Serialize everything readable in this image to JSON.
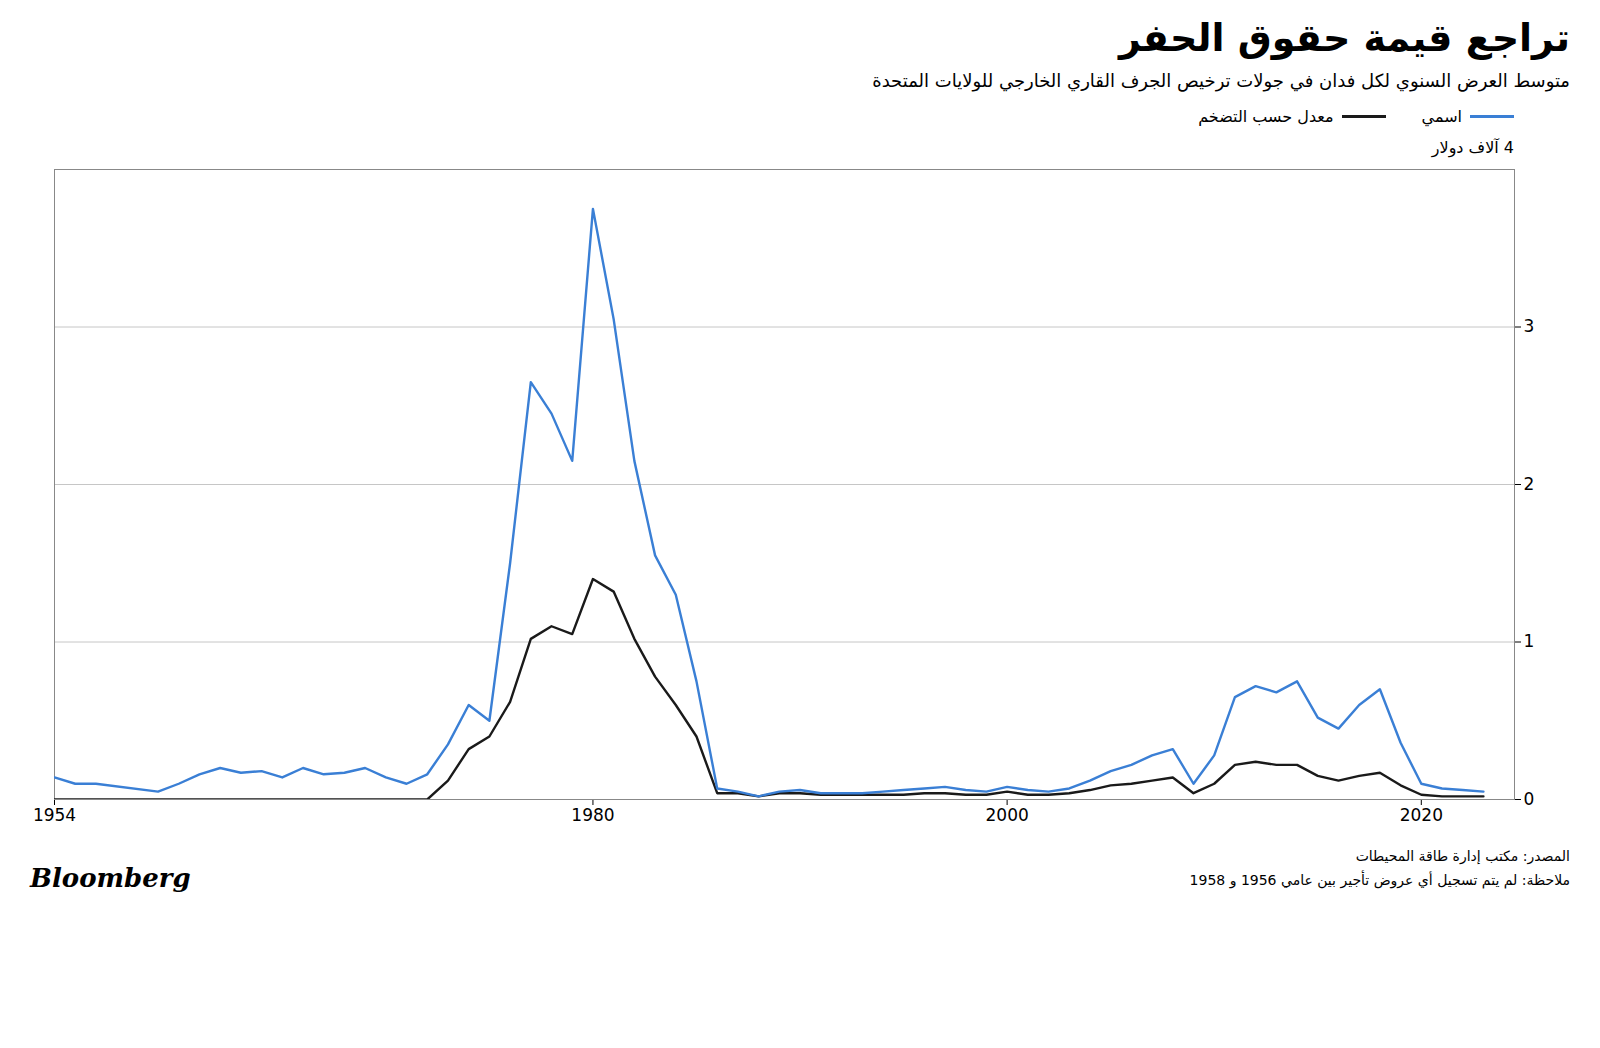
{
  "chart_data": {
    "type": "line",
    "title": "تراجع قيمة حقوق الحفر",
    "subtitle": "متوسط العرض السنوي لكل فدان في جولات ترخيص الجرف القاري الخارجي للولايات المتحدة",
    "ylabel": "4 آلاف دولار",
    "annotations": [
      "المصدر: مكتب إدارة طاقة المحيطات",
      "ملاحظة: لم يتم تسجيل أي عروض تأجير بين عامي 1956 و 1958",
      "Bloomberg"
    ],
    "xlim": [
      1954,
      2024.5
    ],
    "xticks": [
      1954,
      1980,
      2000,
      2020
    ],
    "ylim": [
      0,
      4.0
    ],
    "yticks": [
      0,
      1,
      2,
      3
    ],
    "grid": true,
    "legend": "top-right",
    "x": [
      1954,
      1955,
      1956,
      1959,
      1960,
      1961,
      1962,
      1963,
      1964,
      1965,
      1966,
      1967,
      1968,
      1969,
      1970,
      1971,
      1972,
      1973,
      1974,
      1975,
      1976,
      1977,
      1978,
      1979,
      1980,
      1981,
      1982,
      1983,
      1984,
      1985,
      1986,
      1987,
      1988,
      1989,
      1990,
      1991,
      1992,
      1993,
      1994,
      1995,
      1996,
      1997,
      1998,
      1999,
      2000,
      2001,
      2002,
      2003,
      2004,
      2005,
      2006,
      2007,
      2008,
      2009,
      2010,
      2011,
      2012,
      2013,
      2014,
      2015,
      2016,
      2017,
      2018,
      2019,
      2020,
      2021,
      2022,
      2023
    ],
    "series": [
      {
        "name": "اسمي",
        "color": "#3a7fd5",
        "values": [
          0.14,
          0.1,
          0.1,
          0.05,
          0.1,
          0.16,
          0.2,
          0.17,
          0.18,
          0.14,
          0.2,
          0.16,
          0.17,
          0.2,
          0.14,
          0.1,
          0.16,
          0.35,
          0.6,
          0.5,
          1.5,
          2.65,
          2.45,
          2.15,
          3.75,
          3.05,
          2.15,
          1.55,
          1.3,
          0.75,
          0.07,
          0.05,
          0.02,
          0.05,
          0.06,
          0.04,
          0.04,
          0.04,
          0.05,
          0.06,
          0.07,
          0.08,
          0.06,
          0.05,
          0.08,
          0.06,
          0.05,
          0.07,
          0.12,
          0.18,
          0.22,
          0.28,
          0.32,
          0.1,
          0.28,
          0.65,
          0.72,
          0.68,
          0.75,
          0.52,
          0.45,
          0.6,
          0.7,
          0.36,
          0.1,
          0.07,
          0.06,
          0.05
        ]
      },
      {
        "name": "معدل حسب التضخم",
        "color": "#1a1a1a",
        "values": [
          0.0,
          0.0,
          0.0,
          0.0,
          0.0,
          0.0,
          0.0,
          0.0,
          0.0,
          0.0,
          0.0,
          0.0,
          0.0,
          0.0,
          0.0,
          0.0,
          0.0,
          0.12,
          0.32,
          0.4,
          0.62,
          1.02,
          1.1,
          1.05,
          1.4,
          1.32,
          1.02,
          0.78,
          0.6,
          0.4,
          0.04,
          0.04,
          0.02,
          0.04,
          0.04,
          0.03,
          0.03,
          0.03,
          0.03,
          0.03,
          0.04,
          0.04,
          0.03,
          0.03,
          0.05,
          0.03,
          0.03,
          0.04,
          0.06,
          0.09,
          0.1,
          0.12,
          0.14,
          0.04,
          0.1,
          0.22,
          0.24,
          0.22,
          0.22,
          0.15,
          0.12,
          0.15,
          0.17,
          0.09,
          0.03,
          0.02,
          0.02,
          0.02
        ]
      }
    ]
  }
}
